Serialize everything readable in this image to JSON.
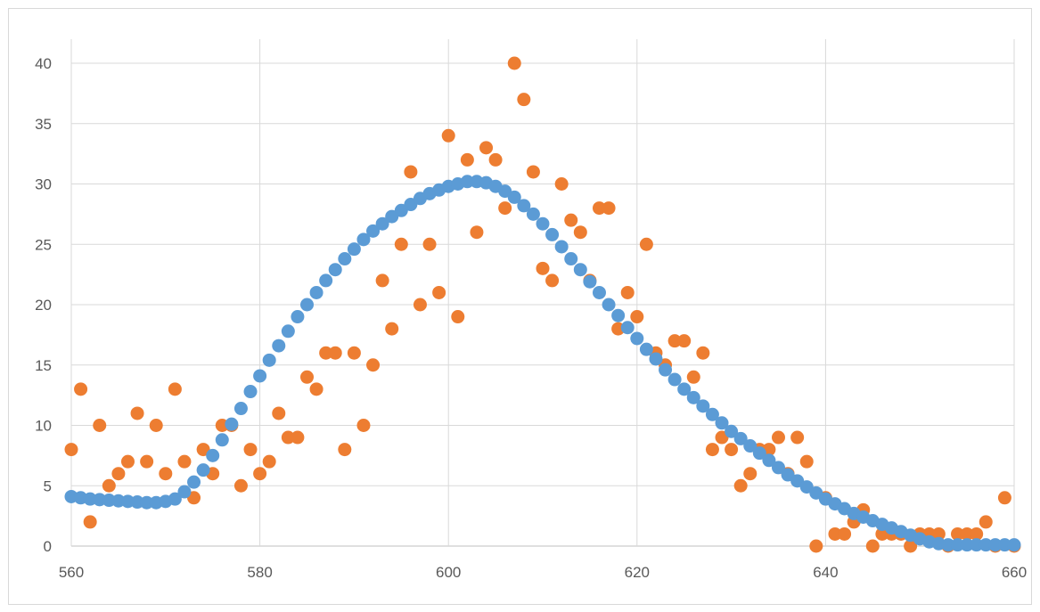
{
  "chart_data": {
    "type": "scatter",
    "title": "",
    "xlabel": "",
    "ylabel": "",
    "xlim": [
      560,
      660
    ],
    "ylim": [
      0,
      40
    ],
    "x_ticks": [
      560,
      580,
      600,
      620,
      640,
      660
    ],
    "y_ticks": [
      0,
      5,
      10,
      15,
      20,
      25,
      30,
      35,
      40
    ],
    "x_tick_labels": [
      "560",
      "580",
      "600",
      "620",
      "640",
      "660"
    ],
    "y_tick_labels": [
      "0",
      "5",
      "10",
      "15",
      "20",
      "25",
      "30",
      "35",
      "40"
    ],
    "grid": true,
    "legend": "none",
    "series": [
      {
        "color": "#ED7D31",
        "x": [
          560,
          561,
          562,
          563,
          564,
          565,
          566,
          567,
          568,
          569,
          570,
          571,
          572,
          573,
          574,
          575,
          576,
          577,
          578,
          579,
          580,
          581,
          582,
          583,
          584,
          585,
          586,
          587,
          588,
          589,
          590,
          591,
          592,
          593,
          594,
          595,
          596,
          597,
          598,
          599,
          600,
          601,
          602,
          603,
          604,
          605,
          606,
          607,
          608,
          609,
          610,
          611,
          612,
          613,
          614,
          615,
          616,
          617,
          618,
          619,
          620,
          621,
          622,
          623,
          624,
          625,
          626,
          627,
          628,
          629,
          630,
          631,
          632,
          633,
          634,
          635,
          636,
          637,
          638,
          639,
          640,
          641,
          642,
          643,
          644,
          645,
          646,
          647,
          648,
          649,
          650,
          651,
          652,
          653,
          654,
          655,
          656,
          657,
          658,
          659,
          660
        ],
        "y": [
          8,
          13,
          2,
          10,
          5,
          6,
          7,
          11,
          7,
          10,
          6,
          13,
          7,
          4,
          8,
          6,
          10,
          10,
          5,
          8,
          6,
          7,
          11,
          9,
          9,
          14,
          13,
          16,
          16,
          8,
          16,
          10,
          15,
          22,
          18,
          25,
          31,
          20,
          25,
          21,
          34,
          19,
          32,
          26,
          33,
          32,
          28,
          40,
          37,
          31,
          23,
          22,
          30,
          27,
          26,
          22,
          28,
          28,
          18,
          21,
          19,
          25,
          16,
          15,
          17,
          17,
          14,
          16,
          8,
          9,
          8,
          5,
          6,
          8,
          8,
          9,
          6,
          9,
          7,
          0,
          4,
          1,
          1,
          2,
          3,
          0,
          1,
          1,
          1,
          0,
          1,
          1,
          1,
          0,
          1,
          1,
          1,
          2,
          0,
          4,
          0
        ]
      },
      {
        "color": "#5B9BD5",
        "x": [
          560,
          561,
          562,
          563,
          564,
          565,
          566,
          567,
          568,
          569,
          570,
          571,
          572,
          573,
          574,
          575,
          576,
          577,
          578,
          579,
          580,
          581,
          582,
          583,
          584,
          585,
          586,
          587,
          588,
          589,
          590,
          591,
          592,
          593,
          594,
          595,
          596,
          597,
          598,
          599,
          600,
          601,
          602,
          603,
          604,
          605,
          606,
          607,
          608,
          609,
          610,
          611,
          612,
          613,
          614,
          615,
          616,
          617,
          618,
          619,
          620,
          621,
          622,
          623,
          624,
          625,
          626,
          627,
          628,
          629,
          630,
          631,
          632,
          633,
          634,
          635,
          636,
          637,
          638,
          639,
          640,
          641,
          642,
          643,
          644,
          645,
          646,
          647,
          648,
          649,
          650,
          651,
          652,
          653,
          654,
          655,
          656,
          657,
          658,
          659,
          660
        ],
        "y": [
          4.1,
          4.0,
          3.9,
          3.85,
          3.8,
          3.75,
          3.7,
          3.65,
          3.6,
          3.6,
          3.7,
          3.9,
          4.5,
          5.3,
          6.3,
          7.5,
          8.8,
          10.1,
          11.4,
          12.8,
          14.1,
          15.4,
          16.6,
          17.8,
          19.0,
          20.0,
          21.0,
          22.0,
          22.9,
          23.8,
          24.6,
          25.4,
          26.1,
          26.7,
          27.3,
          27.8,
          28.3,
          28.8,
          29.2,
          29.5,
          29.8,
          30.0,
          30.2,
          30.2,
          30.1,
          29.8,
          29.4,
          28.9,
          28.2,
          27.5,
          26.7,
          25.8,
          24.8,
          23.8,
          22.9,
          21.9,
          21.0,
          20.0,
          19.1,
          18.1,
          17.2,
          16.3,
          15.5,
          14.6,
          13.8,
          13.0,
          12.3,
          11.6,
          10.9,
          10.2,
          9.5,
          8.9,
          8.3,
          7.7,
          7.1,
          6.5,
          5.9,
          5.4,
          4.9,
          4.4,
          3.9,
          3.5,
          3.1,
          2.7,
          2.4,
          2.1,
          1.8,
          1.5,
          1.2,
          0.9,
          0.6,
          0.35,
          0.2,
          0.1,
          0.1,
          0.1,
          0.1,
          0.1,
          0.1,
          0.1,
          0.1
        ]
      }
    ]
  }
}
